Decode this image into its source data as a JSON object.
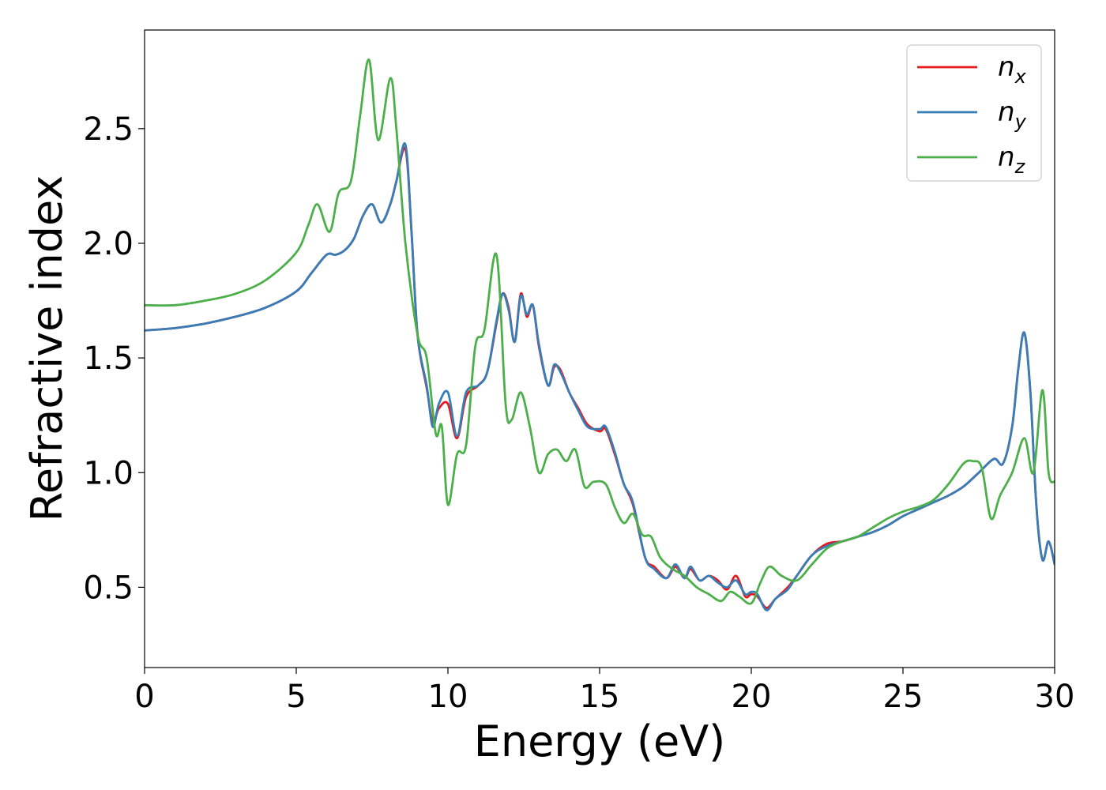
{
  "chart_data": {
    "type": "line",
    "title": "",
    "xlabel": "Energy (eV)",
    "ylabel": "Refractive index",
    "xlim": [
      0,
      30
    ],
    "ylim": [
      0.15,
      2.93
    ],
    "xticks": [
      0,
      5,
      10,
      15,
      20,
      25,
      30
    ],
    "yticks": [
      0.5,
      1.0,
      1.5,
      2.0,
      2.5
    ],
    "xtick_labels": [
      "0",
      "5",
      "10",
      "15",
      "20",
      "25",
      "30"
    ],
    "ytick_labels": [
      "0.5",
      "1.0",
      "1.5",
      "2.0",
      "2.5"
    ],
    "grid": false,
    "legend": {
      "placement": "top-right"
    },
    "series": [
      {
        "name": "n_x",
        "label_main": "n",
        "label_sub": "x",
        "color": "#e41a1c",
        "x": [
          0,
          1,
          2,
          3,
          4,
          5,
          5.5,
          6,
          6.3,
          6.6,
          6.9,
          7.2,
          7.5,
          7.8,
          8.1,
          8.3,
          8.6,
          8.8,
          9,
          9.3,
          9.5,
          9.7,
          10,
          10.3,
          10.6,
          11,
          11.3,
          11.6,
          11.8,
          12,
          12.2,
          12.4,
          12.6,
          12.8,
          13,
          13.3,
          13.5,
          13.7,
          14,
          14.3,
          14.6,
          15,
          15.2,
          15.5,
          15.8,
          16.1,
          16.5,
          16.8,
          17.2,
          17.5,
          17.8,
          18,
          18.3,
          18.6,
          18.9,
          19.2,
          19.5,
          19.8,
          20,
          20.2,
          20.5,
          20.8,
          21.2,
          21.5,
          22,
          22.5,
          23,
          23.5,
          24,
          24.5,
          25,
          25.5,
          26,
          26.5,
          27,
          27.5,
          28,
          28.3,
          28.6,
          28.8,
          29,
          29.2,
          29.4,
          29.6,
          29.8,
          30
        ],
        "y": [
          1.62,
          1.63,
          1.65,
          1.68,
          1.72,
          1.79,
          1.87,
          1.95,
          1.95,
          1.97,
          2.02,
          2.12,
          2.17,
          2.09,
          2.17,
          2.27,
          2.41,
          2.05,
          1.6,
          1.37,
          1.22,
          1.28,
          1.3,
          1.15,
          1.33,
          1.38,
          1.44,
          1.65,
          1.78,
          1.72,
          1.57,
          1.78,
          1.68,
          1.73,
          1.55,
          1.38,
          1.46,
          1.45,
          1.35,
          1.28,
          1.21,
          1.18,
          1.19,
          1.08,
          0.95,
          0.86,
          0.63,
          0.59,
          0.54,
          0.59,
          0.54,
          0.58,
          0.53,
          0.55,
          0.53,
          0.49,
          0.55,
          0.46,
          0.47,
          0.46,
          0.41,
          0.45,
          0.5,
          0.55,
          0.64,
          0.69,
          0.7,
          0.72,
          0.74,
          0.77,
          0.81,
          0.84,
          0.87,
          0.9,
          0.94,
          1.0,
          1.06,
          1.04,
          1.2,
          1.45,
          1.61,
          1.35,
          0.85,
          0.62,
          0.7,
          0.6
        ]
      },
      {
        "name": "n_y",
        "label_main": "n",
        "label_sub": "y",
        "color": "#377eb8",
        "x": [
          0,
          1,
          2,
          3,
          4,
          5,
          5.5,
          6,
          6.3,
          6.6,
          6.9,
          7.2,
          7.5,
          7.8,
          8.1,
          8.3,
          8.6,
          8.8,
          9,
          9.3,
          9.5,
          9.7,
          10,
          10.3,
          10.6,
          11,
          11.3,
          11.6,
          11.8,
          12,
          12.2,
          12.4,
          12.6,
          12.8,
          13,
          13.3,
          13.5,
          13.7,
          14,
          14.3,
          14.6,
          15,
          15.2,
          15.5,
          15.8,
          16.1,
          16.5,
          16.8,
          17.2,
          17.5,
          17.8,
          18,
          18.3,
          18.6,
          18.9,
          19.2,
          19.5,
          19.8,
          20,
          20.2,
          20.5,
          20.8,
          21.2,
          21.5,
          22,
          22.5,
          23,
          23.5,
          24,
          24.5,
          25,
          25.5,
          26,
          26.5,
          27,
          27.5,
          28,
          28.3,
          28.6,
          28.8,
          29,
          29.2,
          29.4,
          29.6,
          29.8,
          30
        ],
        "y": [
          1.62,
          1.63,
          1.65,
          1.68,
          1.72,
          1.79,
          1.87,
          1.95,
          1.95,
          1.97,
          2.02,
          2.12,
          2.17,
          2.09,
          2.17,
          2.27,
          2.43,
          2.05,
          1.6,
          1.38,
          1.2,
          1.3,
          1.35,
          1.16,
          1.35,
          1.38,
          1.44,
          1.66,
          1.78,
          1.71,
          1.57,
          1.77,
          1.69,
          1.73,
          1.56,
          1.38,
          1.47,
          1.44,
          1.35,
          1.27,
          1.2,
          1.19,
          1.2,
          1.09,
          0.95,
          0.87,
          0.63,
          0.58,
          0.54,
          0.6,
          0.54,
          0.59,
          0.53,
          0.55,
          0.52,
          0.5,
          0.53,
          0.47,
          0.48,
          0.47,
          0.4,
          0.45,
          0.49,
          0.55,
          0.64,
          0.68,
          0.7,
          0.72,
          0.74,
          0.77,
          0.81,
          0.84,
          0.87,
          0.9,
          0.94,
          1.0,
          1.06,
          1.04,
          1.2,
          1.45,
          1.61,
          1.35,
          0.85,
          0.62,
          0.7,
          0.6
        ]
      },
      {
        "name": "n_z",
        "label_main": "n",
        "label_sub": "z",
        "color": "#4daf4a",
        "x": [
          0,
          1,
          2,
          3,
          4,
          5,
          5.4,
          5.7,
          6.1,
          6.4,
          6.8,
          7.1,
          7.4,
          7.7,
          8.1,
          8.3,
          8.6,
          9,
          9.3,
          9.6,
          9.8,
          10,
          10.3,
          10.6,
          10.9,
          11.2,
          11.6,
          11.9,
          12.1,
          12.4,
          12.7,
          13,
          13.3,
          13.6,
          13.9,
          14.2,
          14.5,
          14.8,
          15.2,
          15.5,
          15.8,
          16.1,
          16.4,
          16.7,
          17,
          17.4,
          17.8,
          18.2,
          18.6,
          19,
          19.3,
          19.6,
          20,
          20.3,
          20.6,
          21,
          21.5,
          22,
          22.5,
          23,
          23.5,
          24,
          24.5,
          25,
          25.5,
          26,
          26.5,
          27,
          27.3,
          27.6,
          27.9,
          28.2,
          28.6,
          29,
          29.3,
          29.6,
          29.8,
          30
        ],
        "y": [
          1.73,
          1.73,
          1.75,
          1.78,
          1.84,
          1.96,
          2.08,
          2.17,
          2.05,
          2.22,
          2.27,
          2.55,
          2.8,
          2.45,
          2.72,
          2.5,
          2.0,
          1.6,
          1.5,
          1.17,
          1.2,
          0.86,
          1.08,
          1.12,
          1.55,
          1.62,
          1.95,
          1.3,
          1.23,
          1.35,
          1.2,
          1.0,
          1.08,
          1.1,
          1.05,
          1.1,
          0.94,
          0.96,
          0.95,
          0.85,
          0.78,
          0.82,
          0.73,
          0.72,
          0.63,
          0.58,
          0.55,
          0.5,
          0.47,
          0.44,
          0.48,
          0.46,
          0.43,
          0.52,
          0.59,
          0.55,
          0.53,
          0.6,
          0.67,
          0.7,
          0.72,
          0.76,
          0.8,
          0.83,
          0.85,
          0.88,
          0.95,
          1.04,
          1.05,
          1.02,
          0.8,
          0.9,
          1.0,
          1.15,
          1.0,
          1.36,
          1.0,
          0.96
        ]
      }
    ]
  }
}
